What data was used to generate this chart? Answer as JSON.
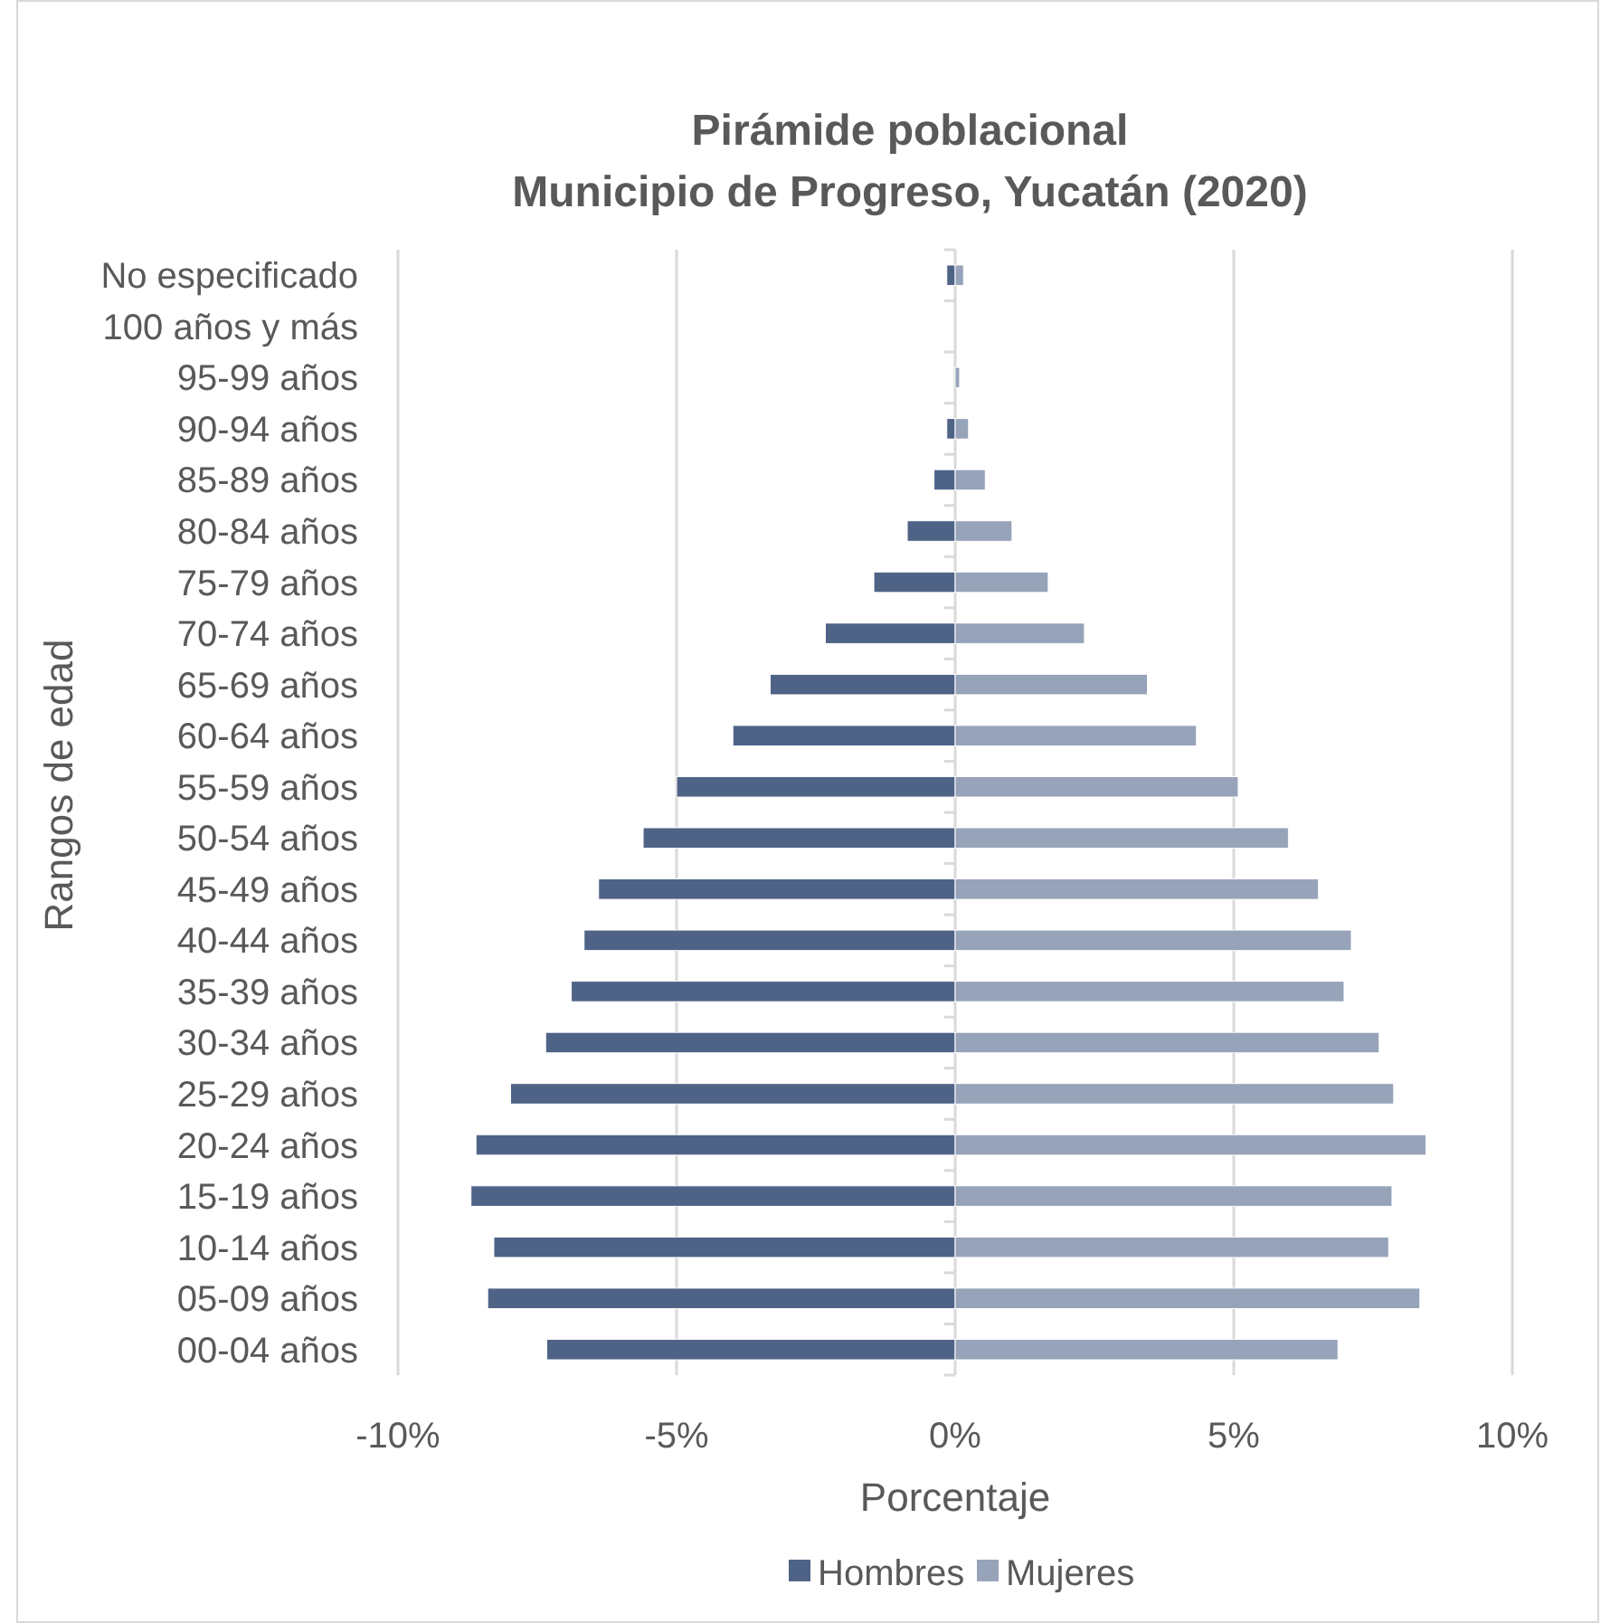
{
  "chart_data": {
    "type": "bar",
    "orientation": "horizontal",
    "title": "Pirámide poblacional\nMunicipio de Progreso, Yucatán (2020)",
    "xlabel": "Porcentaje",
    "ylabel": "Rangos de edad",
    "categories": [
      "No especificado",
      "100 años y más",
      "95-99 años",
      "90-94 años",
      "85-89 años",
      "80-84 años",
      "75-79 años",
      "70-74 años",
      "65-69 años",
      "60-64 años",
      "55-59 años",
      "50-54 años",
      "45-49 años",
      "40-44 años",
      "35-39 años",
      "30-34 años",
      "25-29 años",
      "20-24 años",
      "15-19 años",
      "10-14 años",
      "05-09 años",
      "00-04 años"
    ],
    "series": [
      {
        "name": "Hombres",
        "color": "#4f6387",
        "values": [
          -0.15,
          0,
          0,
          -0.15,
          -0.38,
          -0.86,
          -1.46,
          -2.33,
          -3.32,
          -3.99,
          -5.0,
          -5.6,
          -6.4,
          -6.66,
          -6.89,
          -7.35,
          -7.98,
          -8.6,
          -8.69,
          -8.28,
          -8.39,
          -7.33
        ]
      },
      {
        "name": "Mujeres",
        "color": "#97a3b9",
        "values": [
          0.15,
          0,
          0.08,
          0.24,
          0.54,
          1.02,
          1.67,
          2.32,
          3.45,
          4.33,
          5.08,
          5.98,
          6.52,
          7.11,
          6.98,
          7.61,
          7.87,
          8.45,
          7.84,
          7.78,
          8.34,
          6.87
        ]
      }
    ],
    "xlim": [
      -10,
      10
    ],
    "xticks": [
      {
        "value": -10,
        "label": "-10%"
      },
      {
        "value": -5,
        "label": "-5%"
      },
      {
        "value": 0,
        "label": "0%"
      },
      {
        "value": 5,
        "label": "5%"
      },
      {
        "value": 10,
        "label": "10%"
      }
    ],
    "grid": "x",
    "legend": "bottom",
    "stacked": true
  }
}
